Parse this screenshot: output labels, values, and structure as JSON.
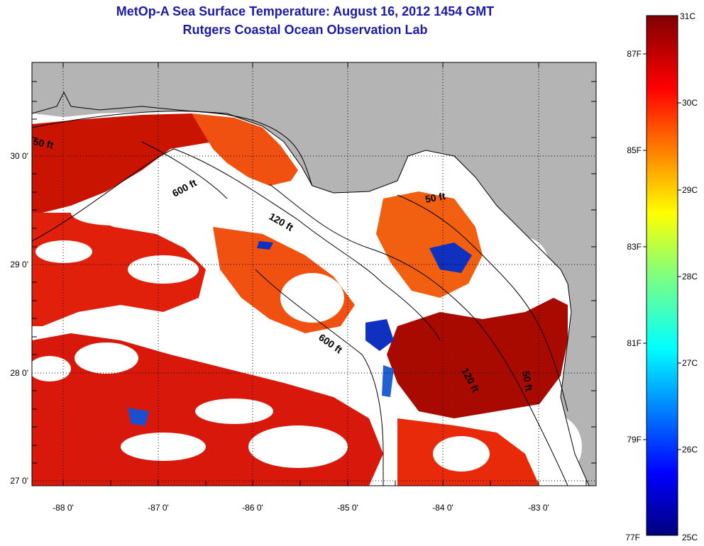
{
  "title": {
    "line1": "MetOp-A Sea Surface Temperature:  August 16, 2012 1454 GMT",
    "line2": "Rutgers Coastal Ocean Observation Lab"
  },
  "map": {
    "lon_ticks": [
      "-88 0'",
      "-87 0'",
      "-86 0'",
      "-85 0'",
      "-84 0'",
      "-83 0'"
    ],
    "lat_ticks": [
      "30 0'",
      "29 0'",
      "28 0'",
      "27 0'"
    ],
    "contours": [
      "50 ft",
      "600 ft",
      "120 ft",
      "50 ft",
      "600 ft",
      "120 ft",
      "50 ft"
    ]
  },
  "colorbar": {
    "celsius": [
      "31C",
      "30C",
      "29C",
      "28C",
      "27C",
      "26C",
      "25C"
    ],
    "fahrenheit": [
      "87F",
      "85F",
      "83F",
      "81F",
      "79F",
      "77F"
    ]
  },
  "colors": {
    "land": "#b4b4b4",
    "title": "#1a1aa6",
    "hot": "#c81400",
    "warm": "#f05010",
    "cool": "#1030c0"
  }
}
